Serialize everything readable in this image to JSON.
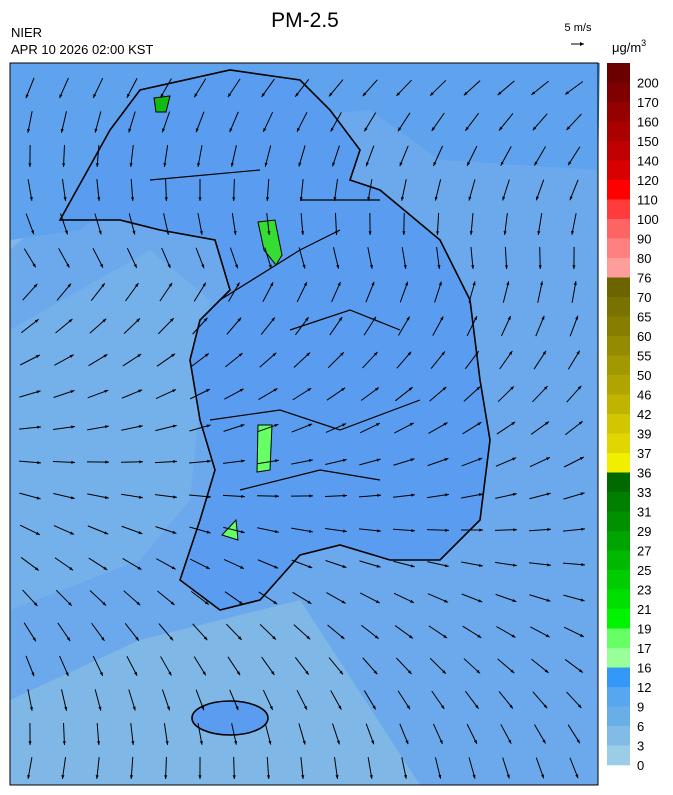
{
  "header": {
    "agency": "NIER",
    "title": "PM-2.5",
    "timestamp": "APR 10 2026 02:00 KST",
    "wind_scale": "5 m/s",
    "unit": "μg/m",
    "unit_sup": "3"
  },
  "colorbar": {
    "labels": [
      "200",
      "170",
      "160",
      "150",
      "140",
      "120",
      "110",
      "100",
      "90",
      "80",
      "76",
      "70",
      "65",
      "60",
      "55",
      "50",
      "46",
      "42",
      "39",
      "37",
      "36",
      "33",
      "31",
      "29",
      "27",
      "25",
      "23",
      "21",
      "19",
      "17",
      "16",
      "12",
      "9",
      "6",
      "3",
      "0"
    ],
    "colors": [
      "#6b0000",
      "#7f0000",
      "#950000",
      "#aa0000",
      "#c00000",
      "#d80000",
      "#ff0000",
      "#ff3c3c",
      "#ff6464",
      "#ff8080",
      "#ff9c9c",
      "#6b6400",
      "#7a7200",
      "#877e00",
      "#958b00",
      "#a29800",
      "#b0a500",
      "#c0b400",
      "#d2c600",
      "#e2d600",
      "#f2ee00",
      "#006a00",
      "#007e00",
      "#009000",
      "#00a400",
      "#00b800",
      "#00cc00",
      "#00e000",
      "#00f400",
      "#66ff66",
      "#99ff99",
      "#3398f8",
      "#57a6f0",
      "#6aaee8",
      "#82bce6",
      "#9ccde6"
    ]
  }
}
